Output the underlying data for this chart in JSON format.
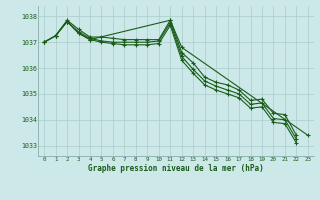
{
  "title": "Graphe pression niveau de la mer (hPa)",
  "background_color": "#cce8e8",
  "grid_color": "#aacccc",
  "line_color": "#1a5c1a",
  "x_labels": [
    0,
    1,
    2,
    3,
    4,
    5,
    6,
    7,
    8,
    9,
    10,
    11,
    12,
    13,
    14,
    15,
    16,
    17,
    18,
    19,
    20,
    21,
    22,
    23
  ],
  "ylim": [
    1032.6,
    1038.4
  ],
  "yticks": [
    1033,
    1034,
    1035,
    1036,
    1037,
    1038
  ],
  "series": [
    [
      1037.0,
      1037.25,
      1037.85,
      1037.5,
      1037.2,
      1037.2,
      1037.15,
      1037.1,
      1037.1,
      1037.1,
      1037.1,
      1037.85,
      1036.6,
      1036.2,
      1035.65,
      1035.45,
      1035.35,
      1035.15,
      1034.75,
      1034.8,
      1034.25,
      1034.2,
      1033.4,
      null
    ],
    [
      1037.0,
      1037.25,
      1037.8,
      1037.4,
      1037.15,
      1037.05,
      1037.0,
      1037.0,
      1037.0,
      1037.0,
      1037.05,
      1037.75,
      1036.45,
      1035.95,
      1035.5,
      1035.3,
      1035.15,
      1035.0,
      1034.6,
      1034.65,
      1034.05,
      1034.0,
      1033.25,
      null
    ],
    [
      1037.0,
      1037.25,
      1037.8,
      1037.35,
      1037.1,
      1037.0,
      1036.95,
      1036.9,
      1036.9,
      1036.9,
      1036.95,
      1037.65,
      1036.3,
      1035.8,
      1035.35,
      1035.15,
      1035.0,
      1034.85,
      1034.45,
      1034.5,
      1033.9,
      1033.85,
      1033.1,
      null
    ],
    [
      null,
      1037.25,
      1037.8,
      1037.35,
      1037.1,
      null,
      null,
      null,
      null,
      null,
      null,
      1037.85,
      1036.8,
      null,
      null,
      null,
      null,
      null,
      null,
      null,
      null,
      null,
      null,
      1033.4
    ]
  ]
}
